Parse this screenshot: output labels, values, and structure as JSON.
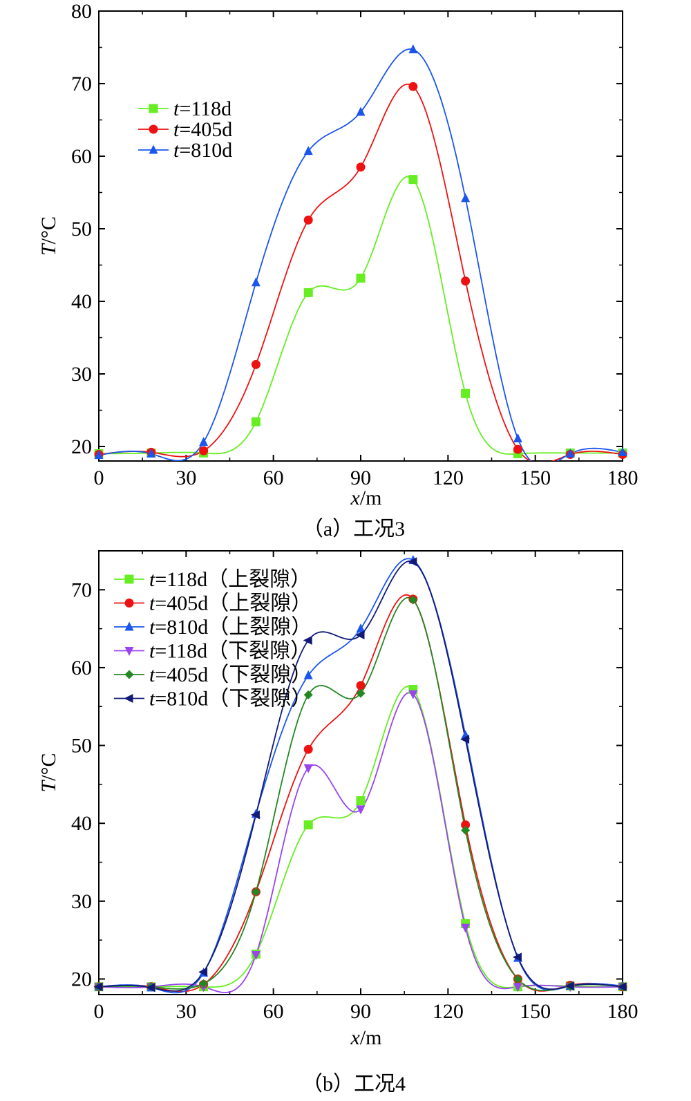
{
  "chart_data": [
    {
      "type": "line",
      "caption": "（a）工况3",
      "xlabel": {
        "var": "x",
        "unit": "/m"
      },
      "ylabel": {
        "var": "T",
        "unit": "/°C"
      },
      "xlim": [
        0,
        180
      ],
      "ylim": [
        18,
        80
      ],
      "xticks": [
        0,
        30,
        60,
        90,
        120,
        150,
        180
      ],
      "yticks": [
        20,
        30,
        40,
        50,
        60,
        70,
        80
      ],
      "grid": false,
      "legend_position": "top-left",
      "x": [
        0,
        18,
        36,
        54,
        72,
        90,
        108,
        126,
        144,
        162,
        180
      ],
      "series": [
        {
          "name": "t=118d",
          "var": "t",
          "rest": "=118d",
          "color": "#66ee22",
          "marker": "square",
          "values": [
            19.0,
            19.1,
            19.1,
            23.4,
            41.2,
            43.2,
            56.8,
            27.3,
            19.0,
            19.1,
            19.1
          ]
        },
        {
          "name": "t=405d",
          "var": "t",
          "rest": "=405d",
          "color": "#ee1111",
          "marker": "circle",
          "values": [
            18.9,
            19.2,
            19.4,
            31.3,
            51.2,
            58.5,
            69.6,
            42.8,
            19.6,
            18.9,
            18.9
          ]
        },
        {
          "name": "t=810d",
          "var": "t",
          "rest": "=810d",
          "color": "#1a55ee",
          "marker": "triangle-up",
          "values": [
            18.8,
            19.0,
            20.6,
            42.6,
            60.7,
            66.1,
            74.7,
            54.2,
            21.1,
            19.0,
            19.2
          ]
        }
      ]
    },
    {
      "type": "line",
      "caption": "（b）工况4",
      "xlabel": {
        "var": "x",
        "unit": "/m"
      },
      "ylabel": {
        "var": "T",
        "unit": "/°C"
      },
      "xlim": [
        0,
        180
      ],
      "ylim": [
        18,
        75
      ],
      "xticks": [
        0,
        30,
        60,
        90,
        120,
        150,
        180
      ],
      "yticks": [
        20,
        30,
        40,
        50,
        60,
        70
      ],
      "grid": false,
      "legend_position": "top-left",
      "x": [
        0,
        18,
        36,
        54,
        72,
        90,
        108,
        126,
        144,
        162,
        180
      ],
      "series": [
        {
          "name": "t=118d（上裂隙）",
          "var": "t",
          "rest": "=118d（上裂隙）",
          "color": "#66ee22",
          "marker": "square",
          "values": [
            19.0,
            19.0,
            19.0,
            23.2,
            39.8,
            42.9,
            57.2,
            27.1,
            19.0,
            19.1,
            19.0
          ]
        },
        {
          "name": "t=405d（上裂隙）",
          "var": "t",
          "rest": "=405d（上裂隙）",
          "color": "#ee1111",
          "marker": "circle",
          "values": [
            19.0,
            19.0,
            19.3,
            31.2,
            49.5,
            57.7,
            68.8,
            39.8,
            20.0,
            19.2,
            19.0
          ]
        },
        {
          "name": "t=810d（上裂隙）",
          "var": "t",
          "rest": "=810d（上裂隙）",
          "color": "#1a55ee",
          "marker": "triangle-up",
          "values": [
            19.0,
            18.9,
            20.8,
            41.2,
            59.0,
            65.0,
            73.8,
            51.3,
            22.7,
            19.1,
            19.1
          ]
        },
        {
          "name": "t=118d（下裂隙）",
          "var": "t",
          "rest": "=118d（下裂隙）",
          "color": "#9944ee",
          "marker": "triangle-down",
          "values": [
            19.0,
            19.0,
            19.0,
            23.1,
            47.1,
            41.8,
            56.6,
            26.6,
            19.0,
            19.0,
            19.0
          ]
        },
        {
          "name": "t=405d（下裂隙）",
          "var": "t",
          "rest": "=405d（下裂隙）",
          "color": "#228822",
          "marker": "diamond",
          "values": [
            19.0,
            19.0,
            19.4,
            31.2,
            56.5,
            56.7,
            68.7,
            39.1,
            20.0,
            19.1,
            19.0
          ]
        },
        {
          "name": "t=810d（下裂隙）",
          "var": "t",
          "rest": "=810d（下裂隙）",
          "color": "#111a77",
          "marker": "triangle-left",
          "values": [
            19.0,
            18.9,
            20.9,
            41.1,
            63.5,
            64.2,
            73.6,
            50.8,
            22.8,
            19.1,
            19.0
          ]
        }
      ]
    }
  ]
}
